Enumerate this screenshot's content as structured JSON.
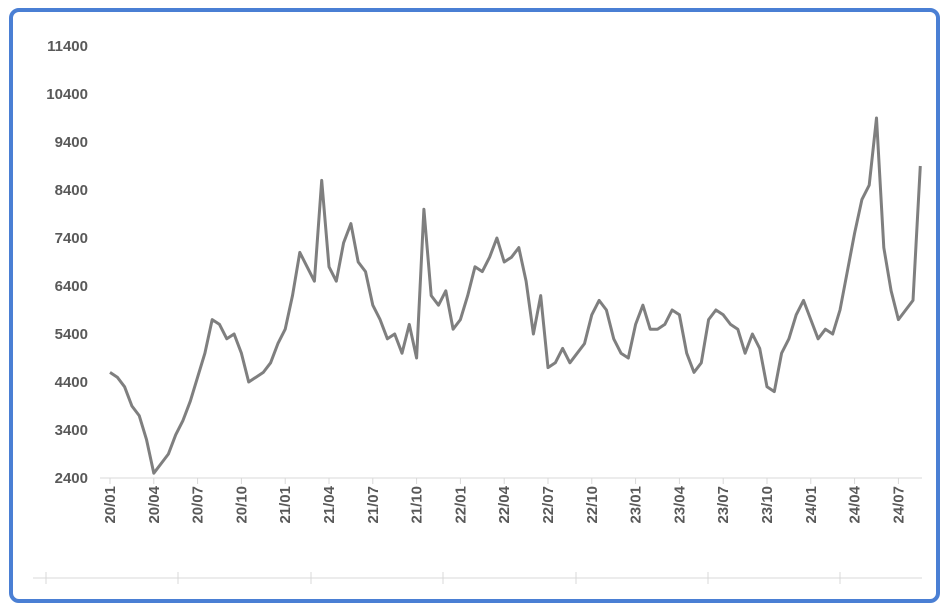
{
  "chart_data": {
    "type": "line",
    "color": "#7f7f7f",
    "grid": false,
    "categories": [
      "20/01",
      null,
      null,
      null,
      null,
      null,
      "20/04",
      null,
      null,
      null,
      null,
      null,
      "20/07",
      null,
      null,
      null,
      null,
      null,
      "20/10",
      null,
      null,
      null,
      null,
      null,
      "21/01",
      null,
      null,
      null,
      null,
      null,
      "21/04",
      null,
      null,
      null,
      null,
      null,
      "21/07",
      null,
      null,
      null,
      null,
      null,
      "21/10",
      null,
      null,
      null,
      null,
      null,
      "22/01",
      null,
      null,
      null,
      null,
      null,
      "22/04",
      null,
      null,
      null,
      null,
      null,
      "22/07",
      null,
      null,
      null,
      null,
      null,
      "22/10",
      null,
      null,
      null,
      null,
      null,
      "23/01",
      null,
      null,
      null,
      null,
      null,
      "23/04",
      null,
      null,
      null,
      null,
      null,
      "23/07",
      null,
      null,
      null,
      null,
      null,
      "23/10",
      null,
      null,
      null,
      null,
      null,
      "24/01",
      null,
      null,
      null,
      null,
      null,
      "24/04",
      null,
      null,
      null,
      null,
      null,
      "24/07",
      null,
      null,
      null
    ],
    "values": [
      4600,
      4500,
      4300,
      3900,
      3700,
      3200,
      2500,
      2700,
      2900,
      3300,
      3600,
      4000,
      4500,
      5000,
      5700,
      5600,
      5300,
      5400,
      5000,
      4400,
      4500,
      4600,
      4800,
      5200,
      5500,
      6200,
      7100,
      6800,
      6500,
      8600,
      6800,
      6500,
      7300,
      7700,
      6900,
      6700,
      6000,
      5700,
      5300,
      5400,
      5000,
      5600,
      4900,
      8000,
      6200,
      6000,
      6300,
      5500,
      5700,
      6200,
      6800,
      6700,
      7000,
      7400,
      6900,
      7000,
      7200,
      6500,
      5400,
      6200,
      4700,
      4800,
      5100,
      4800,
      5000,
      5200,
      5800,
      6100,
      5900,
      5300,
      5000,
      4900,
      5600,
      6000,
      5500,
      5500,
      5600,
      5900,
      5800,
      5000,
      4600,
      4800,
      5700,
      5900,
      5800,
      5600,
      5500,
      5000,
      5400,
      5100,
      4300,
      4200,
      5000,
      5300,
      5800,
      6100,
      5700,
      5300,
      5500,
      5400,
      5900,
      6700,
      7500,
      8200,
      8500,
      9900,
      7200,
      6300,
      5700,
      5900,
      6100,
      8900
    ],
    "ylim": [
      2400,
      11400
    ],
    "yticks": [
      2400,
      3400,
      4400,
      5400,
      6400,
      7400,
      8400,
      9400,
      10400,
      11400
    ]
  }
}
